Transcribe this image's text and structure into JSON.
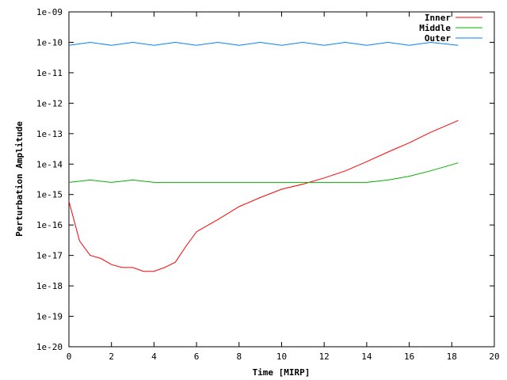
{
  "chart_data": {
    "type": "line",
    "title": "",
    "xlabel": "Time [MIRP]",
    "ylabel": "Perturbation Amplitude",
    "xlim": [
      0,
      20
    ],
    "ylim": [
      1e-20,
      1e-09
    ],
    "yscale": "log",
    "grid": false,
    "legend_position": "top-right",
    "x_ticks": [
      "0",
      "2",
      "4",
      "6",
      "8",
      "10",
      "12",
      "14",
      "16",
      "18",
      "20"
    ],
    "y_ticks": [
      "1e-20",
      "1e-19",
      "1e-18",
      "1e-17",
      "1e-16",
      "1e-15",
      "1e-14",
      "1e-13",
      "1e-12",
      "1e-11",
      "1e-10",
      "1e-09"
    ],
    "series": [
      {
        "name": "Inner",
        "color": "#ff0000",
        "x": [
          0.0,
          0.5,
          1.0,
          1.5,
          2.0,
          2.5,
          3.0,
          3.5,
          4.0,
          4.5,
          5.0,
          5.5,
          6.0,
          7.0,
          8.0,
          9.0,
          10.0,
          11.0,
          12.0,
          13.0,
          14.0,
          15.0,
          16.0,
          17.0,
          18.3
        ],
        "y": [
          6e-16,
          3e-17,
          1e-17,
          8e-18,
          5e-18,
          4e-18,
          4e-18,
          3e-18,
          3e-18,
          4e-18,
          6e-18,
          2e-17,
          6e-17,
          1.5e-16,
          4e-16,
          8e-16,
          1.5e-15,
          2.2e-15,
          3.5e-15,
          6e-15,
          1.2e-14,
          2.5e-14,
          5e-14,
          1.1e-13,
          2.7e-13
        ]
      },
      {
        "name": "Middle",
        "color": "#00b000",
        "x": [
          0.0,
          1.0,
          2.0,
          3.0,
          4.0,
          5.0,
          6.0,
          7.0,
          8.0,
          9.0,
          10.0,
          11.0,
          12.0,
          13.0,
          14.0,
          15.0,
          16.0,
          17.0,
          18.3
        ],
        "y": [
          2.5e-15,
          3e-15,
          2.5e-15,
          3e-15,
          2.5e-15,
          2.5e-15,
          2.5e-15,
          2.5e-15,
          2.5e-15,
          2.5e-15,
          2.5e-15,
          2.5e-15,
          2.5e-15,
          2.5e-15,
          2.5e-15,
          3e-15,
          4e-15,
          6e-15,
          1.1e-14
        ]
      },
      {
        "name": "Outer",
        "color": "#0080ff",
        "x": [
          0.0,
          1.0,
          2.0,
          3.0,
          4.0,
          5.0,
          6.0,
          7.0,
          8.0,
          9.0,
          10.0,
          11.0,
          12.0,
          13.0,
          14.0,
          15.0,
          16.0,
          17.0,
          18.3
        ],
        "y": [
          8e-11,
          1e-10,
          8e-11,
          1e-10,
          8e-11,
          1e-10,
          8e-11,
          1e-10,
          8e-11,
          1e-10,
          8e-11,
          1e-10,
          8e-11,
          1e-10,
          8e-11,
          1e-10,
          8e-11,
          1e-10,
          8e-11
        ]
      }
    ]
  }
}
